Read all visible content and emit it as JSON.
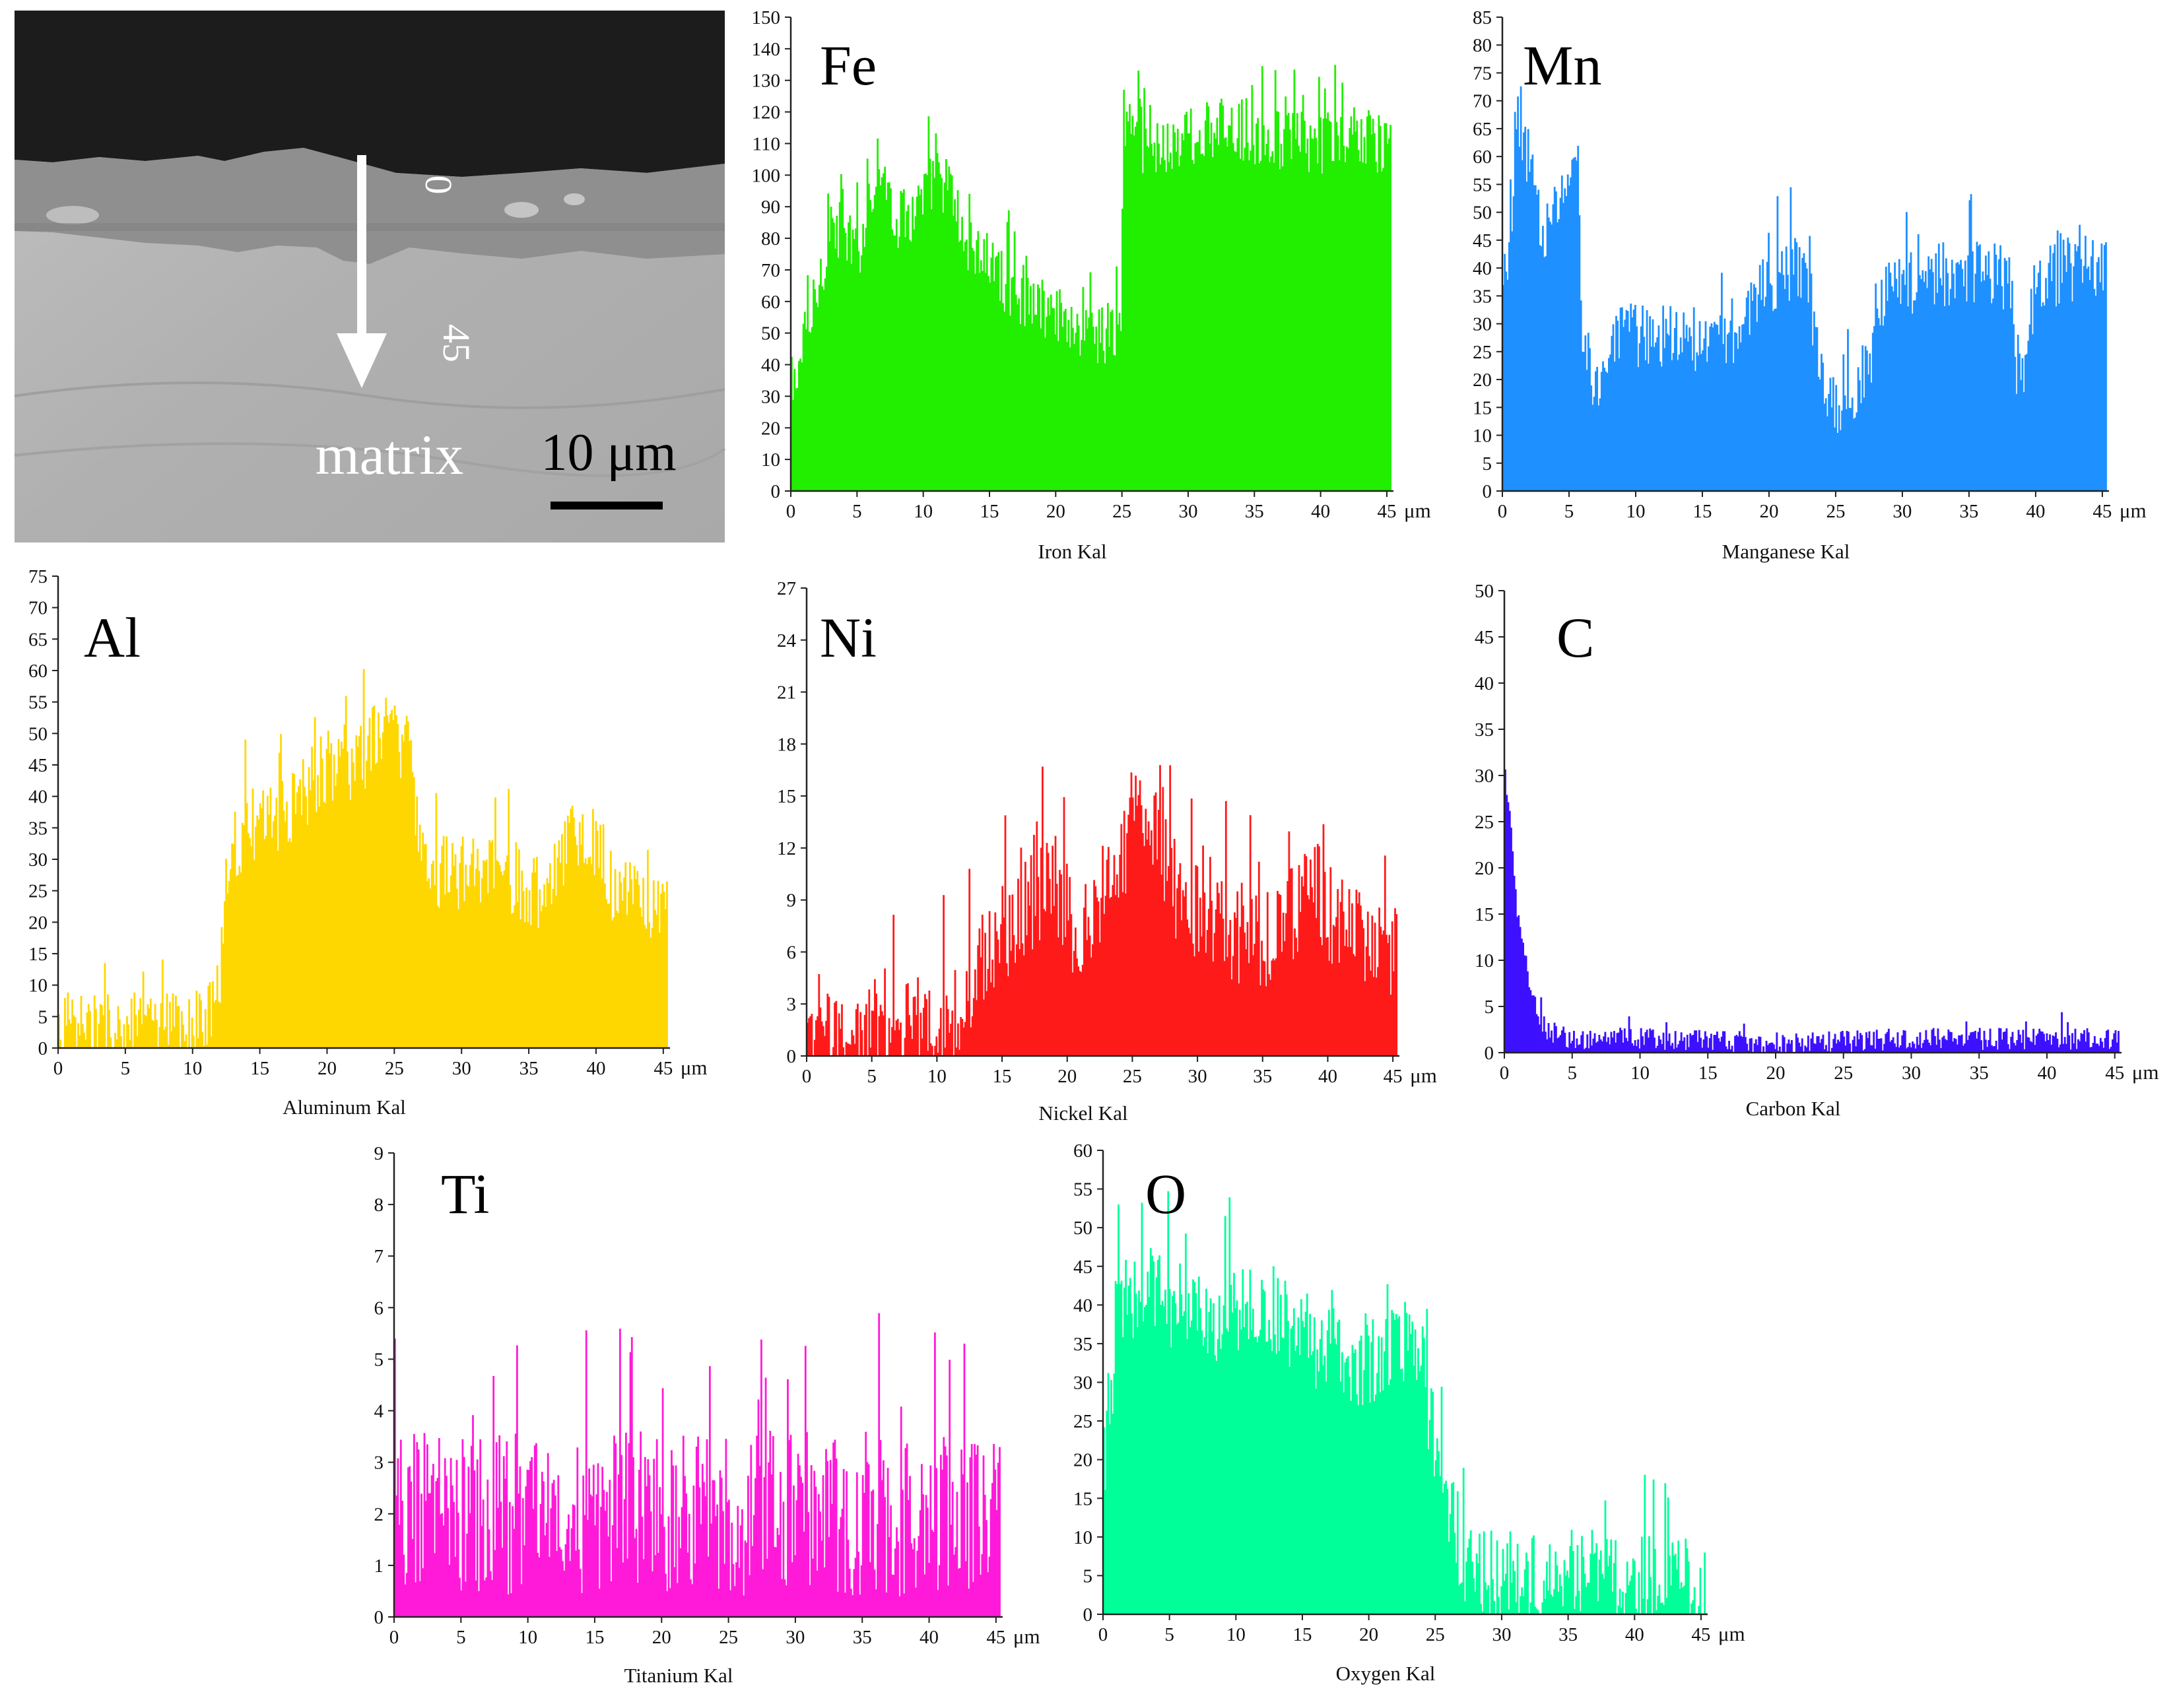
{
  "sem": {
    "label_start": "0",
    "label_end": "45",
    "label_matrix": "matrix",
    "scale_bar": "10 μm",
    "colors": {
      "coating": "#1c1c1c",
      "oxide_layer": "#8f8f8f",
      "matrix": "#b4b4b4",
      "arrow": "#ffffff"
    }
  },
  "chart_data": [
    {
      "id": "fe",
      "type": "bar",
      "element": "Fe",
      "caption": "Iron Kal",
      "unit": "μm",
      "color": "#22ee00",
      "xlim": [
        0,
        45.5
      ],
      "xticks": [
        0,
        5,
        10,
        15,
        20,
        25,
        30,
        35,
        40,
        45
      ],
      "ylim": [
        0,
        150
      ],
      "yticks": [
        0,
        10,
        20,
        30,
        40,
        50,
        60,
        70,
        80,
        90,
        100,
        110,
        120,
        130,
        140,
        150
      ],
      "profile": [
        [
          0,
          25
        ],
        [
          0.5,
          40
        ],
        [
          1.5,
          55
        ],
        [
          3,
          85
        ],
        [
          5,
          75
        ],
        [
          6.5,
          105
        ],
        [
          8,
          85
        ],
        [
          9.5,
          90
        ],
        [
          11,
          100
        ],
        [
          12,
          95
        ],
        [
          13,
          80
        ],
        [
          15,
          70
        ],
        [
          18,
          60
        ],
        [
          20,
          55
        ],
        [
          22,
          50
        ],
        [
          24,
          50
        ],
        [
          24.9,
          50
        ],
        [
          25,
          115
        ],
        [
          27,
          108
        ],
        [
          30,
          112
        ],
        [
          33,
          115
        ],
        [
          36,
          112
        ],
        [
          40,
          110
        ],
        [
          43,
          113
        ],
        [
          45,
          108
        ]
      ],
      "noise": 10
    },
    {
      "id": "mn",
      "type": "bar",
      "element": "Mn",
      "caption": "Manganese Kal",
      "unit": "μm",
      "color": "#1e90ff",
      "xlim": [
        0,
        45.5
      ],
      "xticks": [
        0,
        5,
        10,
        15,
        20,
        25,
        30,
        35,
        40,
        45
      ],
      "ylim": [
        0,
        85
      ],
      "yticks": [
        0,
        5,
        10,
        15,
        20,
        25,
        30,
        35,
        40,
        45,
        50,
        55,
        60,
        65,
        70,
        75,
        80,
        85
      ],
      "profile": [
        [
          0,
          35
        ],
        [
          0.5,
          45
        ],
        [
          1,
          60
        ],
        [
          2,
          60
        ],
        [
          3,
          45
        ],
        [
          4,
          50
        ],
        [
          5,
          55
        ],
        [
          5.6,
          58
        ],
        [
          6,
          25
        ],
        [
          7,
          20
        ],
        [
          9,
          28
        ],
        [
          12,
          28
        ],
        [
          15,
          25
        ],
        [
          18,
          30
        ],
        [
          20,
          38
        ],
        [
          22,
          40
        ],
        [
          23,
          35
        ],
        [
          24,
          20
        ],
        [
          25,
          15
        ],
        [
          26,
          18
        ],
        [
          27.5,
          22
        ],
        [
          28,
          35
        ],
        [
          32,
          38
        ],
        [
          35,
          40
        ],
        [
          38,
          38
        ],
        [
          38.5,
          22
        ],
        [
          39,
          22
        ],
        [
          40,
          38
        ],
        [
          43,
          40
        ],
        [
          45,
          40
        ]
      ],
      "noise": 6
    },
    {
      "id": "al",
      "type": "bar",
      "element": "Al",
      "caption": "Aluminum Kal",
      "unit": "μm",
      "color": "#ffd700",
      "xlim": [
        0,
        45.5
      ],
      "xticks": [
        0,
        5,
        10,
        15,
        20,
        25,
        30,
        35,
        40,
        45
      ],
      "ylim": [
        0,
        75
      ],
      "yticks": [
        0,
        5,
        10,
        15,
        20,
        25,
        30,
        35,
        40,
        45,
        50,
        55,
        60,
        65,
        70,
        75
      ],
      "profile": [
        [
          0,
          3
        ],
        [
          5,
          3
        ],
        [
          10,
          3
        ],
        [
          11,
          4
        ],
        [
          12,
          12
        ],
        [
          12.5,
          30
        ],
        [
          14,
          35
        ],
        [
          17,
          38
        ],
        [
          20,
          45
        ],
        [
          22,
          45
        ],
        [
          24,
          50
        ],
        [
          26,
          48
        ],
        [
          27,
          30
        ],
        [
          28,
          28
        ],
        [
          30,
          28
        ],
        [
          33,
          28
        ],
        [
          35,
          25
        ],
        [
          36,
          24
        ],
        [
          37,
          28
        ],
        [
          38.5,
          35
        ],
        [
          40,
          32
        ],
        [
          41,
          26
        ],
        [
          43,
          25
        ],
        [
          45,
          22
        ]
      ],
      "noise": 6
    },
    {
      "id": "ni",
      "type": "bar",
      "element": "Ni",
      "caption": "Nickel Kal",
      "unit": "μm",
      "color": "#ff1a1a",
      "xlim": [
        0,
        45.5
      ],
      "xticks": [
        0,
        5,
        10,
        15,
        20,
        25,
        30,
        35,
        40,
        45
      ],
      "ylim": [
        0,
        27
      ],
      "yticks": [
        0,
        3,
        6,
        9,
        12,
        15,
        18,
        21,
        24,
        27
      ],
      "profile": [
        [
          0,
          0.5
        ],
        [
          3,
          1
        ],
        [
          6,
          1
        ],
        [
          8,
          1.5
        ],
        [
          10,
          2
        ],
        [
          12,
          3
        ],
        [
          13,
          5
        ],
        [
          15,
          7
        ],
        [
          17,
          9
        ],
        [
          19,
          10
        ],
        [
          20,
          8
        ],
        [
          21,
          7
        ],
        [
          22,
          9
        ],
        [
          24,
          11
        ],
        [
          25,
          13
        ],
        [
          26,
          15
        ],
        [
          27,
          12
        ],
        [
          28,
          10
        ],
        [
          30,
          8
        ],
        [
          33,
          7
        ],
        [
          36,
          7
        ],
        [
          38,
          9
        ],
        [
          39,
          10
        ],
        [
          40,
          8
        ],
        [
          42,
          7
        ],
        [
          45,
          6
        ]
      ],
      "noise": 3
    },
    {
      "id": "c",
      "type": "bar",
      "element": "C",
      "caption": "Carbon Kal",
      "unit": "μm",
      "color": "#3d10ff",
      "xlim": [
        0,
        45.5
      ],
      "xticks": [
        0,
        5,
        10,
        15,
        20,
        25,
        30,
        35,
        40,
        45
      ],
      "ylim": [
        0,
        50
      ],
      "yticks": [
        0,
        5,
        10,
        15,
        20,
        25,
        30,
        35,
        40,
        45,
        50
      ],
      "profile": [
        [
          0,
          30
        ],
        [
          0.4,
          25
        ],
        [
          0.8,
          16
        ],
        [
          1.2,
          12
        ],
        [
          1.6,
          8
        ],
        [
          2.2,
          5
        ],
        [
          3,
          2.5
        ],
        [
          5,
          1.5
        ],
        [
          10,
          1.5
        ],
        [
          20,
          1
        ],
        [
          30,
          1.5
        ],
        [
          40,
          1.5
        ],
        [
          45,
          1.5
        ]
      ],
      "noise": 1.2
    },
    {
      "id": "ti",
      "type": "bar",
      "element": "Ti",
      "caption": "Titanium Kal",
      "unit": "μm",
      "color": "#ff1ad9",
      "xlim": [
        0,
        45.5
      ],
      "xticks": [
        0,
        5,
        10,
        15,
        20,
        25,
        30,
        35,
        40,
        45
      ],
      "ylim": [
        0,
        9
      ],
      "yticks": [
        0,
        1,
        2,
        3,
        4,
        5,
        6,
        7,
        8,
        9
      ],
      "profile": [
        [
          0,
          2
        ],
        [
          10,
          2
        ],
        [
          20,
          2
        ],
        [
          30,
          2
        ],
        [
          40,
          2
        ],
        [
          45,
          2.2
        ]
      ],
      "noise": 1.6
    },
    {
      "id": "o",
      "type": "bar",
      "element": "O",
      "caption": "Oxygen Kal",
      "unit": "μm",
      "color": "#00ff99",
      "xlim": [
        0,
        45.5
      ],
      "xticks": [
        0,
        5,
        10,
        15,
        20,
        25,
        30,
        35,
        40,
        45
      ],
      "ylim": [
        0,
        60
      ],
      "yticks": [
        0,
        5,
        10,
        15,
        20,
        25,
        30,
        35,
        40,
        45,
        50,
        55,
        60
      ],
      "profile": [
        [
          0,
          20
        ],
        [
          0.5,
          28
        ],
        [
          1,
          40
        ],
        [
          3,
          42
        ],
        [
          5,
          40
        ],
        [
          8,
          38
        ],
        [
          10,
          40
        ],
        [
          13,
          38
        ],
        [
          15,
          36
        ],
        [
          18,
          33
        ],
        [
          20,
          33
        ],
        [
          22,
          34
        ],
        [
          23.5,
          35
        ],
        [
          24,
          32
        ],
        [
          25,
          20
        ],
        [
          26,
          14
        ],
        [
          27,
          8
        ],
        [
          28,
          5
        ],
        [
          30,
          5
        ],
        [
          33,
          4
        ],
        [
          35,
          5
        ],
        [
          38,
          5
        ],
        [
          40,
          5
        ],
        [
          43,
          4
        ],
        [
          45,
          4
        ]
      ],
      "noise": 6
    }
  ]
}
